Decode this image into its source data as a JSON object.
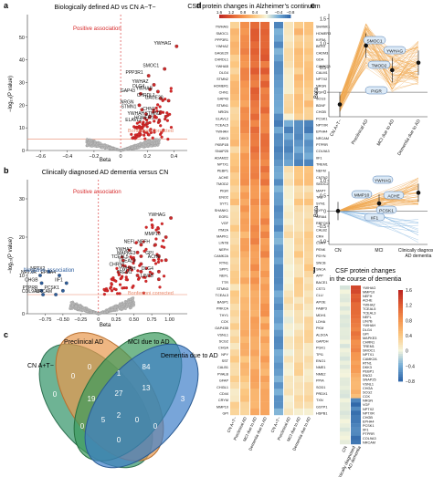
{
  "panel_letters": [
    "a",
    "b",
    "c",
    "d",
    "e",
    "f",
    "g"
  ],
  "chart_data": [
    {
      "panel": "a",
      "type": "scatter",
      "title": "Biologically defined AD vs CN A−T−",
      "xlabel": "Beta",
      "ylabel": "−log₁₀(P value)",
      "xlim": [
        -0.7,
        0.5
      ],
      "ylim": [
        0,
        60
      ],
      "xticks": [
        "−0.6",
        "−0.4",
        "−0.2",
        "0",
        "0.2",
        "0.4"
      ],
      "yticks": [
        "0",
        "10",
        "20",
        "30",
        "40",
        "50"
      ],
      "threshold_label": "Bonferroni corrected",
      "threshold_y": 5,
      "positive_label": "Positive association",
      "labeled_points": [
        {
          "label": "YWHAG",
          "x": 0.42,
          "y": 46
        },
        {
          "label": "SMOC1",
          "x": 0.33,
          "y": 36
        },
        {
          "label": "PPP3R1",
          "x": 0.21,
          "y": 33
        },
        {
          "label": "YWHAZ",
          "x": 0.25,
          "y": 29
        },
        {
          "label": "DLG4",
          "x": 0.22,
          "y": 27
        },
        {
          "label": "YWHAB",
          "x": 0.28,
          "y": 26
        },
        {
          "label": "GAP43",
          "x": 0.15,
          "y": 25
        },
        {
          "label": "CHRDL1",
          "x": 0.3,
          "y": 23
        },
        {
          "label": "GAGE20",
          "x": 0.36,
          "y": 22
        },
        {
          "label": "NRGN",
          "x": 0.14,
          "y": 20
        },
        {
          "label": "STMN1",
          "x": 0.16,
          "y": 18
        },
        {
          "label": "CHN1",
          "x": 0.3,
          "y": 17
        },
        {
          "label": "STMN2",
          "x": 0.34,
          "y": 15
        },
        {
          "label": "YWHAH",
          "x": 0.22,
          "y": 15
        },
        {
          "label": "HOMER1",
          "x": 0.29,
          "y": 13
        },
        {
          "label": "ELAVL2",
          "x": 0.2,
          "y": 12
        }
      ]
    },
    {
      "panel": "b",
      "type": "scatter",
      "title": "Clinically diagnosed AD dementia versus CN",
      "xlabel": "Beta",
      "ylabel": "−log₁₀(P value)",
      "xlim": [
        -1.0,
        1.25
      ],
      "ylim": [
        0,
        35
      ],
      "xticks": [
        "−0.75",
        "−0.50",
        "−0.25",
        "0",
        "0.25",
        "0.50",
        "0.75",
        "1.00"
      ],
      "yticks": [
        "0",
        "10",
        "20",
        "30"
      ],
      "threshold_label": "Bonferroni corrected",
      "threshold_y": 5,
      "positive_label": "Positive association",
      "negative_label": "Negative association",
      "labeled_points": [
        {
          "label": "YWHAG",
          "x": 1.02,
          "y": 25,
          "dir": "pos"
        },
        {
          "label": "MMP10",
          "x": 0.95,
          "y": 20,
          "dir": "pos"
        },
        {
          "label": "NEFL",
          "x": 0.6,
          "y": 18,
          "dir": "pos"
        },
        {
          "label": "NEFH",
          "x": 0.8,
          "y": 18,
          "dir": "pos"
        },
        {
          "label": "YWHAZ",
          "x": 0.55,
          "y": 16,
          "dir": "pos"
        },
        {
          "label": "GPI",
          "x": 0.85,
          "y": 15,
          "dir": "pos"
        },
        {
          "label": "MAPKE3",
          "x": 0.6,
          "y": 15,
          "dir": "pos"
        },
        {
          "label": "ACHE",
          "x": 0.95,
          "y": 14,
          "dir": "pos"
        },
        {
          "label": "TCEAL5",
          "x": 0.5,
          "y": 14,
          "dir": "pos"
        },
        {
          "label": "TCEAL3",
          "x": 0.6,
          "y": 13,
          "dir": "pos"
        },
        {
          "label": "CHRN1",
          "x": 0.45,
          "y": 12,
          "dir": "pos"
        },
        {
          "label": "YWHAH",
          "x": 0.6,
          "y": 11,
          "dir": "pos"
        },
        {
          "label": "DLG4",
          "x": 0.85,
          "y": 11,
          "dir": "pos"
        },
        {
          "label": "TREM1",
          "x": 0.55,
          "y": 10,
          "dir": "pos"
        },
        {
          "label": "LIN7B",
          "x": 0.85,
          "y": 9,
          "dir": "pos"
        },
        {
          "label": "NPTXR",
          "x": -0.82,
          "y": 10,
          "dir": "neg"
        },
        {
          "label": "NPTX2",
          "x": -0.7,
          "y": 11,
          "dir": "neg"
        },
        {
          "label": "EPHA4",
          "x": -0.55,
          "y": 10,
          "dir": "neg"
        },
        {
          "label": "CHGB",
          "x": -0.8,
          "y": 8,
          "dir": "neg"
        },
        {
          "label": "IIF1",
          "x": -0.45,
          "y": 8,
          "dir": "neg"
        },
        {
          "label": "PTPRR",
          "x": -0.8,
          "y": 6,
          "dir": "neg"
        },
        {
          "label": "PCSK1",
          "x": -0.5,
          "y": 6,
          "dir": "neg"
        },
        {
          "label": "COL9A3",
          "x": -0.78,
          "y": 5,
          "dir": "neg"
        },
        {
          "label": "NRCAM",
          "x": -0.6,
          "y": 5,
          "dir": "neg"
        }
      ]
    },
    {
      "panel": "c",
      "type": "table",
      "subtype": "venn",
      "sets": [
        {
          "name": "CN A+T−",
          "color": "#3d9970"
        },
        {
          "name": "Preclinical AD",
          "color": "#e8994f"
        },
        {
          "name": "MCI due to AD",
          "color": "#3a9a5c"
        },
        {
          "name": "Dementia due to AD",
          "color": "#3f7fc9"
        }
      ],
      "region_counts": [
        "0",
        "0",
        "84",
        "3",
        "0",
        "1",
        "13",
        "27",
        "19",
        "5",
        "0",
        "2",
        "0",
        "0",
        "0"
      ]
    },
    {
      "panel": "d",
      "type": "heatmap",
      "title": "CSF protein changes in Alzheimer’s continuum",
      "colorbar_ticks": [
        "1.6",
        "1.2",
        "0.8",
        "0.4",
        "0",
        "−0.4",
        "−0.8"
      ],
      "columns_left": [
        "CN A+T−",
        "Preclinical AD",
        "MCI due to AD",
        "Dementia due to AD"
      ],
      "columns_right": [
        "CN A+T−",
        "Preclinical AD",
        "MCI due to AD",
        "Dementia due to AD"
      ],
      "rows_left": [
        "YWHAG",
        "SMOC1",
        "PPP3R1",
        "YWHAZ",
        "GAGE20",
        "CHRDL1",
        "YWHAB",
        "DLG4",
        "STMN2",
        "HOMER1",
        "CHN1",
        "GAP43",
        "STMN1",
        "NRGN",
        "ELAVL2",
        "TCEAL5",
        "YWHAH",
        "DKK3",
        "FKBP1B",
        "SNAP25",
        "ADAM22",
        "NPTX1",
        "PEBP1",
        "ACHE",
        "TMOD2",
        "PIGR",
        "ENO2",
        "SYT1",
        "SHANK1",
        "EGR1",
        "VGF",
        "ITM2A",
        "MAPK1",
        "LIN7B",
        "NEFH",
        "CAMK2A",
        "RTN1",
        "SPP1",
        "NEFL",
        "TTR",
        "STMN3",
        "TCEAL3",
        "BASP1",
        "PRKCA",
        "THY1",
        "CCK",
        "GAP43B",
        "VSNL1",
        "SCG2",
        "CHGA",
        "NPY",
        "SST",
        "CALB1",
        "PVALB",
        "GFAP",
        "CHI3L1",
        "CD44",
        "CRYM",
        "MMP10",
        "GPI"
      ],
      "rows_right": [
        "SHANK1",
        "HOMER3",
        "KIF5A",
        "BEX3",
        "CADM3",
        "GDA",
        "CAMK2B",
        "CALM1",
        "NPTX2",
        "NRGN",
        "VGF",
        "SCG3",
        "BDNF",
        "CHGB",
        "PCSK1",
        "NPTXR",
        "EPHA4",
        "NRCAM",
        "PTPRR",
        "COL9A3",
        "IIF1",
        "TREM1",
        "NEFM",
        "CNTN2",
        "SMOC2",
        "MAPT",
        "TAU",
        "SYN1",
        "SYP",
        "GRIA4",
        "RBFOX3",
        "CALB2",
        "CRH",
        "CORT",
        "PENK",
        "PDYN",
        "SNCB",
        "SNCA",
        "APP",
        "BACE1",
        "CST3",
        "CLU",
        "APOE",
        "FABP3",
        "MDH1",
        "LDHA",
        "PKM",
        "ALDOA",
        "GAPDH",
        "PGK1",
        "TPI1",
        "ENO1",
        "NME1",
        "NME2",
        "PPIA",
        "SOD1",
        "PRDX1",
        "TXN",
        "GSTP1",
        "HSPB1"
      ]
    },
    {
      "panel": "e",
      "type": "line",
      "ylabel": "Beta",
      "ylim": [
        -0.5,
        1.6
      ],
      "yticks": [
        "0",
        "0.5",
        "1.0",
        "1.5"
      ],
      "categories": [
        "CN A+T−",
        "Preclinical AD",
        "MCI due to AD",
        "Dementia due to AD"
      ],
      "labeled": [
        "SMOC1",
        "YWHAG",
        "TMOD2",
        "PIGR"
      ],
      "mean_values": [
        -0.25,
        0.95,
        0.45,
        0.6
      ]
    },
    {
      "panel": "f",
      "type": "line",
      "ylabel": "Beta",
      "ylim": [
        -1.1,
        1.3
      ],
      "yticks": [
        "−1.0",
        "−0.5",
        "0",
        "0.5",
        "1.0"
      ],
      "categories": [
        "CN",
        "MCI",
        "Clinically diagnosed AD dementia"
      ],
      "labeled": [
        "YWHAG",
        "MMP10",
        "ACHE",
        "IIF1",
        "PCSK1"
      ],
      "mean_values": [
        0.0,
        0.25,
        0.6
      ]
    },
    {
      "panel": "g",
      "type": "heatmap",
      "title": "CSF protein changes in the course of dementia",
      "colorbar_ticks": [
        "1.6",
        "1.2",
        "0.8",
        "0.4",
        "0",
        "−0.4",
        "−0.8"
      ],
      "columns": [
        "CN",
        "Clinically diagnosed AD dementia"
      ],
      "rows": [
        "YWHAG",
        "MMP10",
        "NEFH",
        "ACHE",
        "YWHAZ",
        "TCEAL5",
        "TCEAL3",
        "NEFL",
        "LIN7B",
        "YWHAH",
        "DLG4",
        "GPI",
        "MAPKE3",
        "CHRN1",
        "TREM1",
        "SMOC1",
        "NPTX1",
        "CAMK2A",
        "RTN1",
        "DKK3",
        "PEBP1",
        "ENO2",
        "SNAP25",
        "VSNL1",
        "CHGA",
        "SCG2",
        "CCK",
        "NRGN",
        "VGF",
        "NPTX2",
        "NPTXR",
        "CHGB",
        "EPHA4",
        "PCSK1",
        "IIF1",
        "PTPRR",
        "COL9A3",
        "NRCAM"
      ]
    }
  ]
}
